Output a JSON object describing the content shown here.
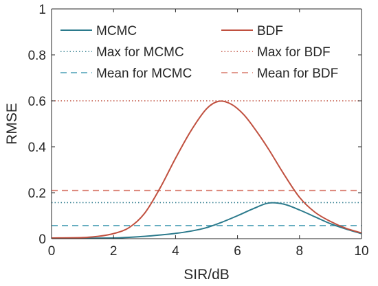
{
  "chart_data": {
    "type": "line",
    "xlabel": "SIR/dB",
    "ylabel": "RMSE",
    "xlim": [
      0,
      10
    ],
    "ylim": [
      0,
      1
    ],
    "xticks": [
      "0",
      "2",
      "4",
      "6",
      "8",
      "10"
    ],
    "yticks": [
      "0",
      "0.2",
      "0.4",
      "0.6",
      "0.8",
      "1"
    ],
    "grid": false,
    "legend_position": "top",
    "legend_columns": 2,
    "series": [
      {
        "name": "MCMC",
        "style": "solid",
        "color": "#2b7a8c",
        "x": [
          0,
          1,
          2,
          2.5,
          3,
          3.5,
          4,
          4.5,
          5,
          5.5,
          6,
          6.5,
          7,
          7.5,
          8,
          8.5,
          9,
          9.5,
          10
        ],
        "y": [
          0.003,
          0.002,
          0.003,
          0.006,
          0.01,
          0.016,
          0.023,
          0.033,
          0.048,
          0.072,
          0.1,
          0.13,
          0.155,
          0.15,
          0.125,
          0.095,
          0.065,
          0.042,
          0.022
        ]
      },
      {
        "name": "BDF",
        "style": "solid",
        "color": "#c0503f",
        "x": [
          0,
          1,
          1.5,
          2,
          2.5,
          3,
          3.5,
          4,
          4.5,
          5,
          5.4,
          5.8,
          6.2,
          6.6,
          7,
          7.5,
          8,
          8.5,
          9,
          9.5,
          10
        ],
        "y": [
          0.003,
          0.005,
          0.01,
          0.022,
          0.048,
          0.11,
          0.22,
          0.35,
          0.47,
          0.565,
          0.598,
          0.585,
          0.54,
          0.47,
          0.39,
          0.28,
          0.18,
          0.115,
          0.075,
          0.045,
          0.025
        ]
      },
      {
        "name": "Max for MCMC",
        "style": "dotted",
        "color": "#2b7a8c",
        "x": [
          0,
          10
        ],
        "y": [
          0.157,
          0.157
        ]
      },
      {
        "name": "Max for BDF",
        "style": "dotted",
        "color": "#c0503f",
        "x": [
          0,
          10
        ],
        "y": [
          0.6,
          0.6
        ]
      },
      {
        "name": "Mean for MCMC",
        "style": "dashed",
        "color": "#4a9fb5",
        "x": [
          0,
          10
        ],
        "y": [
          0.057,
          0.057
        ]
      },
      {
        "name": "Mean for BDF",
        "style": "dashed",
        "color": "#d87a6c",
        "x": [
          0,
          10
        ],
        "y": [
          0.21,
          0.21
        ]
      }
    ]
  }
}
